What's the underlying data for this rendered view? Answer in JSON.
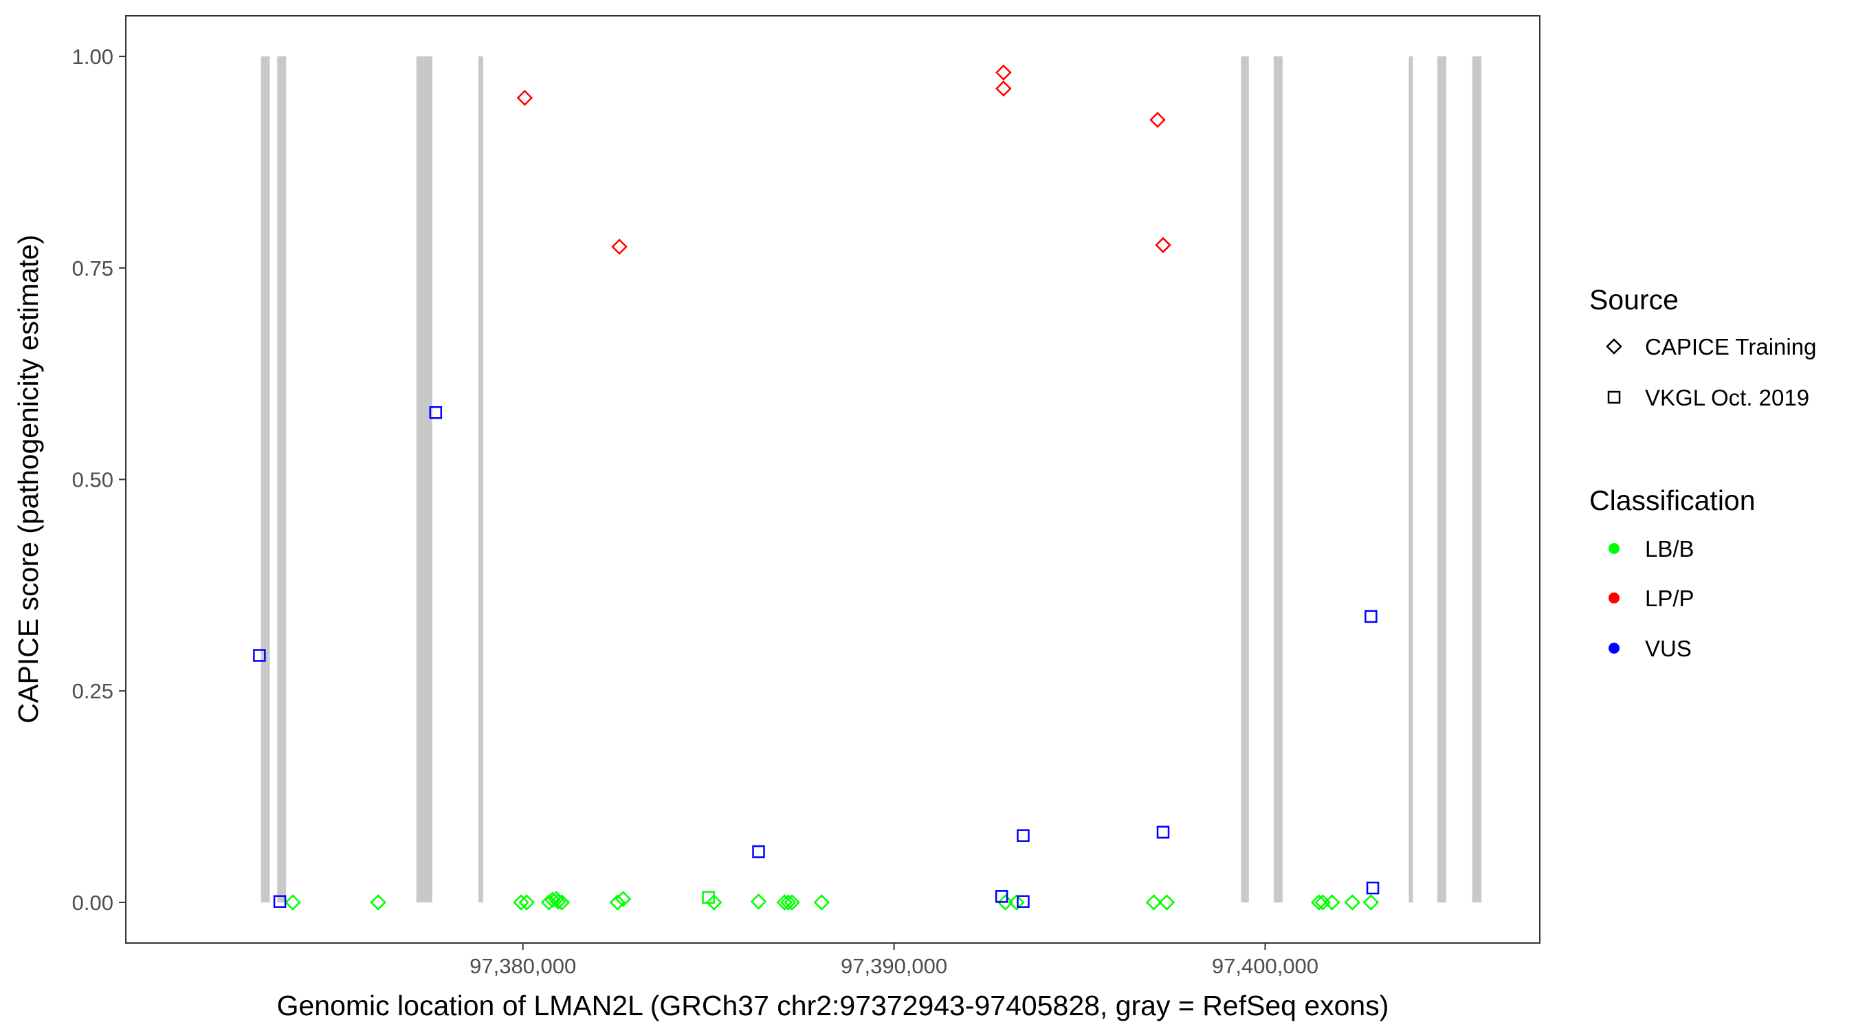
{
  "chart_data": {
    "type": "scatter",
    "title": "",
    "xlabel": "Genomic location of LMAN2L (GRCh37 chr2:97372943-97405828, gray = RefSeq exons)",
    "ylabel": "CAPICE score (pathogenicity estimate)",
    "xlim": [
      97369300,
      97407400
    ],
    "ylim": [
      -0.048,
      1.048
    ],
    "x_ticks": [
      97380000,
      97390000,
      97400000
    ],
    "x_tick_labels": [
      "97,380,000",
      "97,390,000",
      "97,400,000"
    ],
    "y_ticks": [
      0,
      0.25,
      0.5,
      0.75,
      1.0
    ],
    "y_tick_labels": [
      "0.00",
      "0.25",
      "0.50",
      "0.75",
      "1.00"
    ],
    "grid": false,
    "exons": [
      [
        97372943,
        97373180
      ],
      [
        97373380,
        97373620
      ],
      [
        97377130,
        97377560
      ],
      [
        97378800,
        97378930
      ],
      [
        97399350,
        97399560
      ],
      [
        97400230,
        97400470
      ],
      [
        97403870,
        97403980
      ],
      [
        97404640,
        97404880
      ],
      [
        97405580,
        97405828
      ]
    ],
    "legend": {
      "position": "right",
      "source_title": "Source",
      "source_entries": [
        {
          "label": "CAPICE Training",
          "shape": "diamond"
        },
        {
          "label": "VKGL Oct. 2019",
          "shape": "square"
        }
      ],
      "classification_title": "Classification",
      "classification_entries": [
        {
          "label": "LB/B",
          "color": "#00ff00"
        },
        {
          "label": "LP/P",
          "color": "#ff0000"
        },
        {
          "label": "VUS",
          "color": "#0000ff"
        }
      ]
    },
    "series": [
      {
        "source": "CAPICE Training",
        "classification": "LP/P",
        "shape": "diamond",
        "color": "#ff0000",
        "points": [
          {
            "x": 97380050,
            "y": 0.951
          },
          {
            "x": 97382600,
            "y": 0.775
          },
          {
            "x": 97392950,
            "y": 0.981
          },
          {
            "x": 97392950,
            "y": 0.962
          },
          {
            "x": 97397100,
            "y": 0.925
          },
          {
            "x": 97397250,
            "y": 0.777
          }
        ]
      },
      {
        "source": "CAPICE Training",
        "classification": "LB/B",
        "shape": "diamond",
        "color": "#00ff00",
        "points": [
          {
            "x": 97373800,
            "y": 0.0
          },
          {
            "x": 97376100,
            "y": 0.0
          },
          {
            "x": 97379950,
            "y": 0.0
          },
          {
            "x": 97380100,
            "y": 0.0
          },
          {
            "x": 97380700,
            "y": 0.0
          },
          {
            "x": 97380800,
            "y": 0.003
          },
          {
            "x": 97380900,
            "y": 0.004
          },
          {
            "x": 97380950,
            "y": 0.001
          },
          {
            "x": 97381050,
            "y": 0.0
          },
          {
            "x": 97382550,
            "y": 0.0
          },
          {
            "x": 97382700,
            "y": 0.004
          },
          {
            "x": 97385150,
            "y": 0.0
          },
          {
            "x": 97386350,
            "y": 0.001
          },
          {
            "x": 97387050,
            "y": 0.0
          },
          {
            "x": 97387150,
            "y": 0.0
          },
          {
            "x": 97387250,
            "y": 0.0
          },
          {
            "x": 97388050,
            "y": 0.0
          },
          {
            "x": 97393000,
            "y": 0.0
          },
          {
            "x": 97393300,
            "y": 0.0
          },
          {
            "x": 97397000,
            "y": 0.0
          },
          {
            "x": 97397350,
            "y": 0.0
          },
          {
            "x": 97401450,
            "y": 0.0
          },
          {
            "x": 97401550,
            "y": 0.0
          },
          {
            "x": 97401800,
            "y": 0.0
          },
          {
            "x": 97402350,
            "y": 0.0
          },
          {
            "x": 97402850,
            "y": 0.0
          }
        ]
      },
      {
        "source": "VKGL Oct. 2019",
        "classification": "VUS",
        "shape": "square",
        "color": "#0000ff",
        "points": [
          {
            "x": 97372900,
            "y": 0.292
          },
          {
            "x": 97373450,
            "y": 0.001
          },
          {
            "x": 97377650,
            "y": 0.579
          },
          {
            "x": 97386350,
            "y": 0.06
          },
          {
            "x": 97392900,
            "y": 0.007
          },
          {
            "x": 97393480,
            "y": 0.079
          },
          {
            "x": 97393480,
            "y": 0.001
          },
          {
            "x": 97397250,
            "y": 0.083
          },
          {
            "x": 97402850,
            "y": 0.338
          },
          {
            "x": 97402900,
            "y": 0.017
          }
        ]
      },
      {
        "source": "VKGL Oct. 2019",
        "classification": "LB/B",
        "shape": "square",
        "color": "#00ff00",
        "points": [
          {
            "x": 97385000,
            "y": 0.006
          }
        ]
      }
    ]
  }
}
